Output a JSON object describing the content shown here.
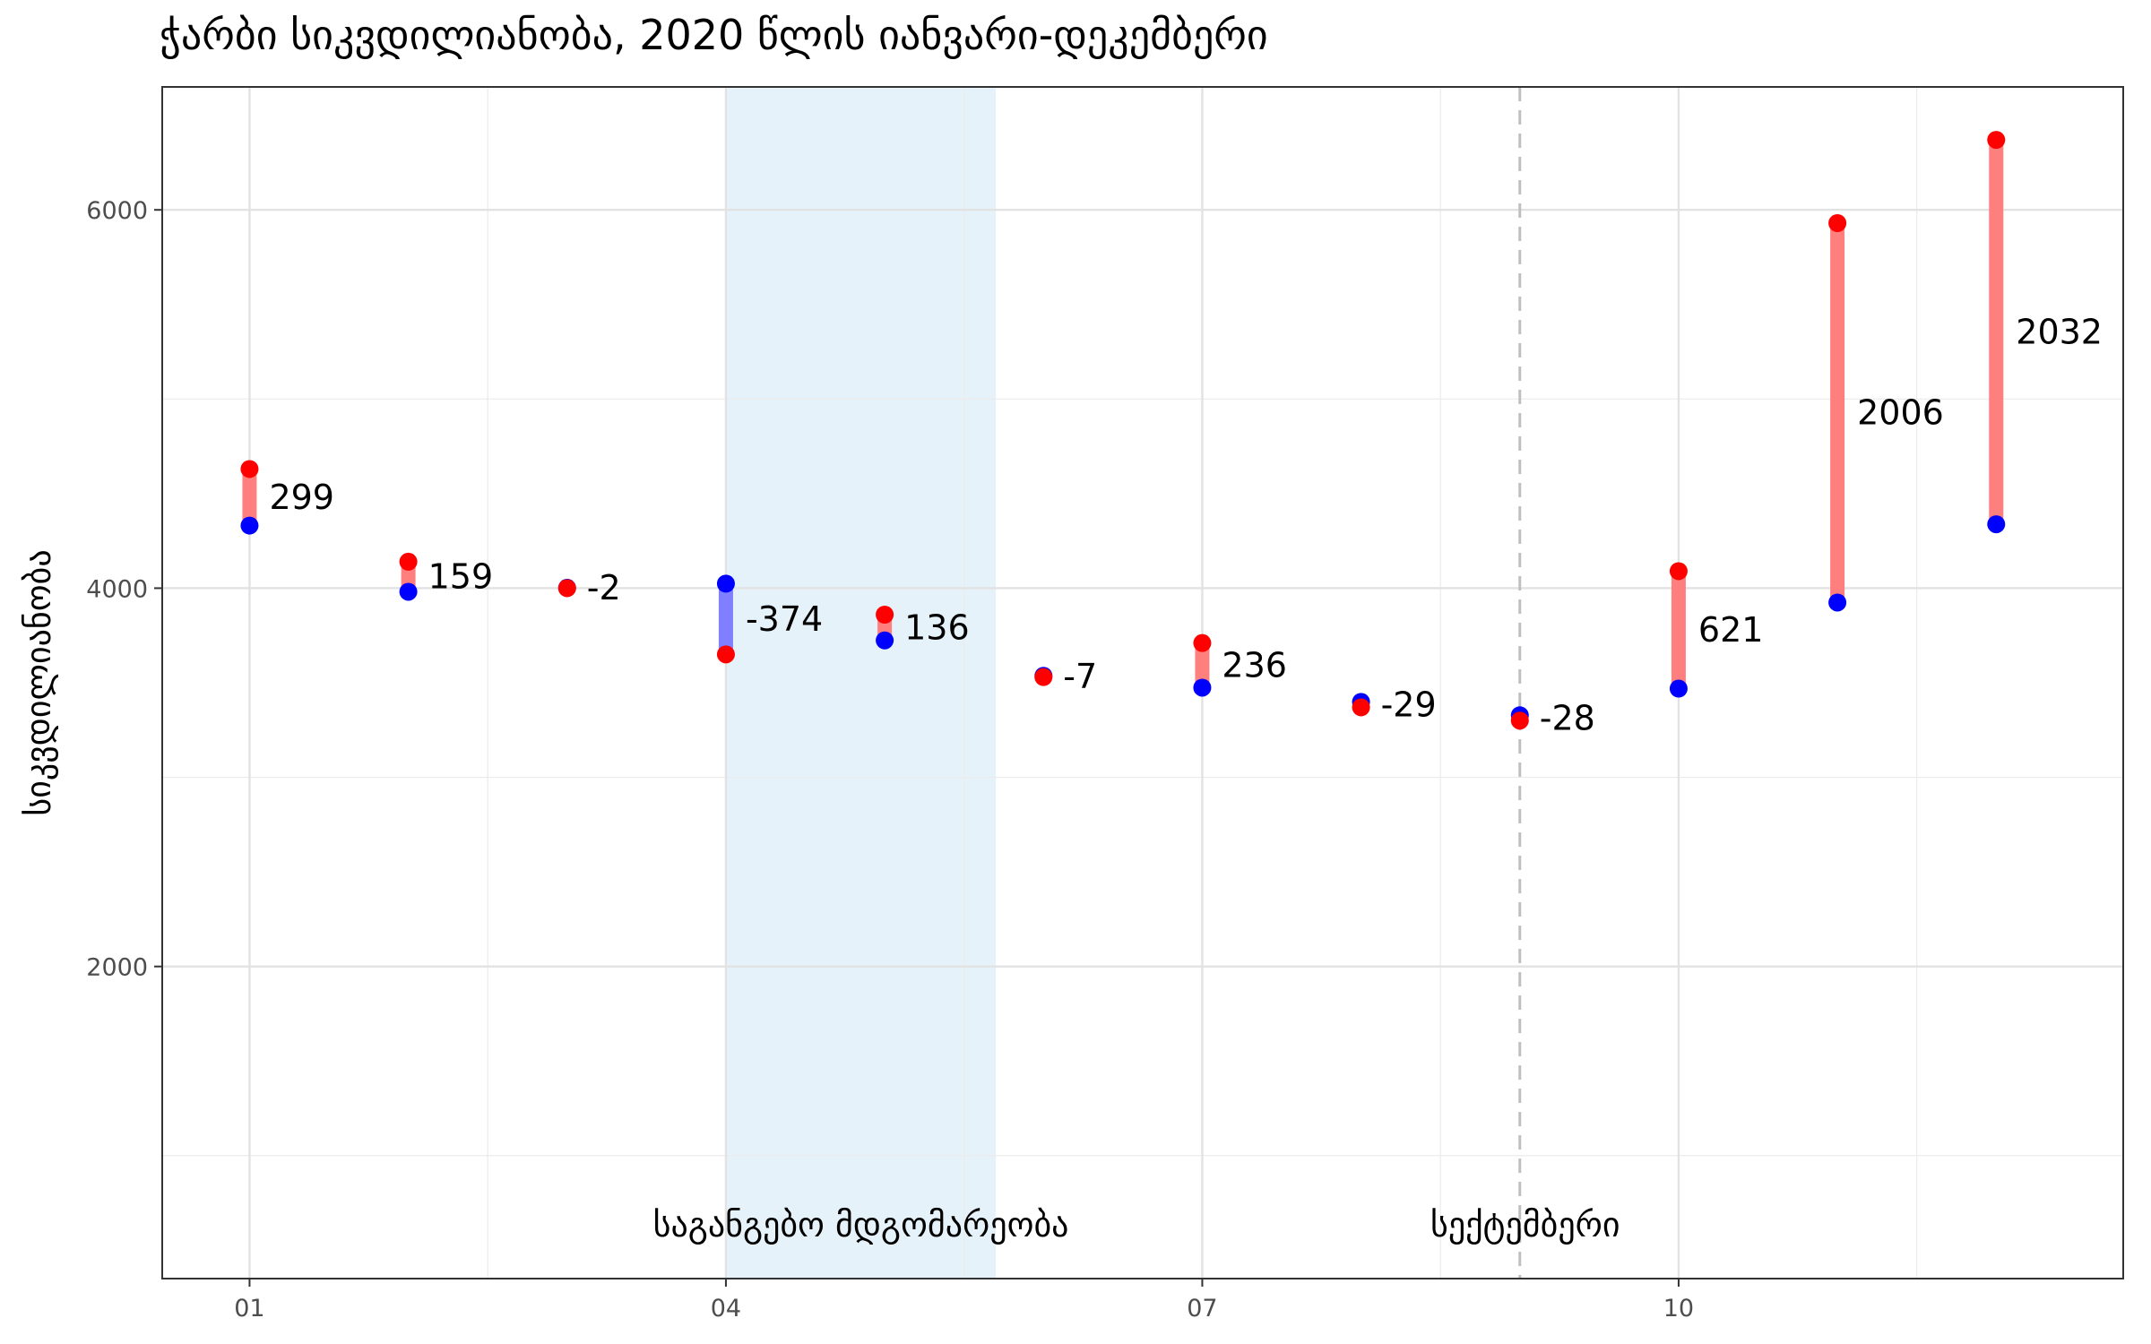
{
  "chart_data": {
    "type": "dumbbell",
    "title": "ჭარბი სიკვდილიანობა, 2020 წლის იანვარი-დეკემბერი",
    "subtitle": "",
    "xlabel": "",
    "ylabel": "სიკვდილიანობა",
    "x_tick_labels": [
      "01",
      "04",
      "07",
      "10"
    ],
    "x_tick_values": [
      1,
      4,
      7,
      10
    ],
    "y_tick_labels": [
      "2000",
      "4000",
      "6000"
    ],
    "y_tick_values": [
      2000,
      4000,
      6000
    ],
    "xlim": [
      0.45,
      12.8
    ],
    "ylim": [
      350,
      6650
    ],
    "grid": true,
    "legend": "none",
    "colors": {
      "observed": "#ff0000",
      "expected": "#0000ff",
      "excess_positive": "#ff7f7f",
      "excess_negative": "#7f7fff",
      "shade": "#d9ebf6",
      "vline": "#bfbfbf"
    },
    "categories": [
      1,
      2,
      3,
      4,
      5,
      6,
      7,
      8,
      9,
      10,
      11,
      12
    ],
    "series": [
      {
        "values": [
          4630,
          4140,
          4000,
          3650,
          3860,
          3530,
          3710,
          3370,
          3300,
          4090,
          5930,
          6370
        ]
      },
      {
        "values": [
          4331,
          3981,
          4002,
          4024,
          3724,
          3537,
          3474,
          3399,
          3328,
          3469,
          3924,
          4338
        ]
      }
    ],
    "labels": [
      "299",
      "159",
      "-2",
      "-374",
      "136",
      "-7",
      "236",
      "-29",
      "-28",
      "621",
      "2006",
      "2032"
    ],
    "annotations": [
      {
        "type": "shaded_region",
        "x_start": 4,
        "x_end": 5.7,
        "text": "საგანგებო მდგომარეობა"
      },
      {
        "type": "vertical_line",
        "x": 9.0,
        "style": "dashed",
        "text": "სექტემბერი"
      }
    ]
  }
}
